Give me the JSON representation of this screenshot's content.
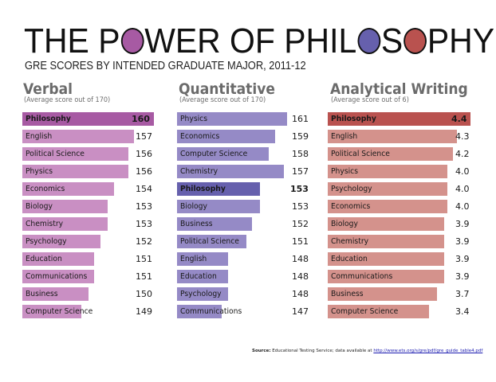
{
  "header": {
    "title_parts": [
      "THE P",
      "WER OF PHIL",
      "S",
      "PHY"
    ],
    "title": "THE POWER OF PHILOSOPHY",
    "circle_colors": [
      "#a75aa3",
      "#6660ad",
      "#b9524f"
    ],
    "subtitle": "GRE SCORES BY INTENDED GRADUATE MAJOR, 2011-12"
  },
  "columns": [
    {
      "heading": "Verbal",
      "subheading": "(Average score out of 170)",
      "bar_color": "#c98fc3",
      "highlight_color": "#a75aa3",
      "rows": [
        {
          "label": "Philosophy",
          "value": "160",
          "highlight": true
        },
        {
          "label": "English",
          "value": "157"
        },
        {
          "label": "Political Science",
          "value": "156"
        },
        {
          "label": "Physics",
          "value": "156"
        },
        {
          "label": "Economics",
          "value": "154"
        },
        {
          "label": "Biology",
          "value": "153"
        },
        {
          "label": "Chemistry",
          "value": "153"
        },
        {
          "label": "Psychology",
          "value": "152"
        },
        {
          "label": "Education",
          "value": "151"
        },
        {
          "label": "Communications",
          "value": "151"
        },
        {
          "label": "Business",
          "value": "150"
        },
        {
          "label": "Computer Science",
          "value": "149"
        }
      ]
    },
    {
      "heading": "Quantitative",
      "subheading": "(Average score out of 170)",
      "bar_color": "#958ac6",
      "highlight_color": "#6660ad",
      "rows": [
        {
          "label": "Physics",
          "value": "161"
        },
        {
          "label": "Economics",
          "value": "159"
        },
        {
          "label": "Computer Science",
          "value": "158"
        },
        {
          "label": "Chemistry",
          "value": "157"
        },
        {
          "label": "Philosophy",
          "value": "153",
          "highlight": true
        },
        {
          "label": "Biology",
          "value": "153"
        },
        {
          "label": "Business",
          "value": "152"
        },
        {
          "label": "Political Science",
          "value": "151"
        },
        {
          "label": "English",
          "value": "148"
        },
        {
          "label": "Education",
          "value": "148"
        },
        {
          "label": "Psychology",
          "value": "148"
        },
        {
          "label": "Communications",
          "value": "147"
        }
      ]
    },
    {
      "heading": "Analytical Writing",
      "subheading": "(Average score out of 6)",
      "bar_color": "#d4928c",
      "highlight_color": "#b9524f",
      "rows": [
        {
          "label": "Philosophy",
          "value": "4.4",
          "highlight": true
        },
        {
          "label": "English",
          "value": "4.3"
        },
        {
          "label": "Political Science",
          "value": "4.2"
        },
        {
          "label": "Physics",
          "value": "4.0"
        },
        {
          "label": "Psychology",
          "value": "4.0"
        },
        {
          "label": "Economics",
          "value": "4.0"
        },
        {
          "label": "Biology",
          "value": "3.9"
        },
        {
          "label": "Chemistry",
          "value": "3.9"
        },
        {
          "label": "Education",
          "value": "3.9"
        },
        {
          "label": "Communications",
          "value": "3.9"
        },
        {
          "label": "Business",
          "value": "3.7"
        },
        {
          "label": "Computer Science",
          "value": "3.4"
        }
      ]
    }
  ],
  "footer": {
    "source_label": "Source:",
    "source_text": " Educational Testing Service; data available at ",
    "source_link": "http://www.ets.org/s/gre/pdf/gre_guide_table4.pdf"
  },
  "chart_data": [
    {
      "type": "bar",
      "orientation": "horizontal",
      "title": "Verbal",
      "subtitle": "(Average score out of 170)",
      "categories": [
        "Philosophy",
        "English",
        "Political Science",
        "Physics",
        "Economics",
        "Biology",
        "Chemistry",
        "Psychology",
        "Education",
        "Communications",
        "Business",
        "Computer Science"
      ],
      "values": [
        160,
        157,
        156,
        156,
        154,
        153,
        153,
        152,
        151,
        151,
        150,
        149
      ],
      "highlight": "Philosophy",
      "xlim": [
        170
      ]
    },
    {
      "type": "bar",
      "orientation": "horizontal",
      "title": "Quantitative",
      "subtitle": "(Average score out of 170)",
      "categories": [
        "Physics",
        "Economics",
        "Computer Science",
        "Chemistry",
        "Philosophy",
        "Biology",
        "Business",
        "Political Science",
        "English",
        "Education",
        "Psychology",
        "Communications"
      ],
      "values": [
        161,
        159,
        158,
        157,
        153,
        153,
        152,
        151,
        148,
        148,
        148,
        147
      ],
      "highlight": "Philosophy",
      "xlim": [
        170
      ]
    },
    {
      "type": "bar",
      "orientation": "horizontal",
      "title": "Analytical Writing",
      "subtitle": "(Average score out of 6)",
      "categories": [
        "Philosophy",
        "English",
        "Political Science",
        "Physics",
        "Psychology",
        "Economics",
        "Biology",
        "Chemistry",
        "Education",
        "Communications",
        "Business",
        "Computer Science"
      ],
      "values": [
        4.4,
        4.3,
        4.2,
        4.0,
        4.0,
        4.0,
        3.9,
        3.9,
        3.9,
        3.9,
        3.7,
        3.4
      ],
      "highlight": "Philosophy",
      "xlim": [
        6
      ]
    }
  ]
}
